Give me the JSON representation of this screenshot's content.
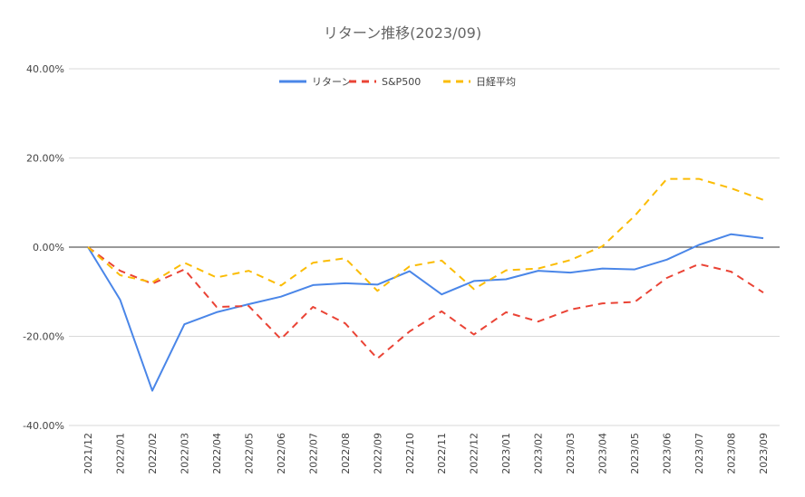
{
  "chart_data": {
    "type": "line",
    "title": "リターン推移(2023/09)",
    "xlabel": "",
    "ylabel": "",
    "ylim": [
      -40,
      40
    ],
    "yticks": [
      40,
      20,
      0,
      -20,
      -40
    ],
    "ytick_labels": [
      "40.00%",
      "20.00%",
      "0.00%",
      "-20.00%",
      "-40.00%"
    ],
    "grid": true,
    "legend_position": "top-center",
    "categories": [
      "2021/12",
      "2022/01",
      "2022/02",
      "2022/03",
      "2022/04",
      "2022/05",
      "2022/06",
      "2022/07",
      "2022/08",
      "2022/09",
      "2022/10",
      "2022/11",
      "2022/12",
      "2023/01",
      "2023/02",
      "2023/03",
      "2023/04",
      "2023/05",
      "2023/06",
      "2023/07",
      "2023/08",
      "2023/09"
    ],
    "series": [
      {
        "name": "リターン",
        "color": "#4a86e8",
        "style": "solid",
        "values": [
          0,
          -11.8,
          -32.2,
          -17.3,
          -14.6,
          -12.8,
          -11.1,
          -8.5,
          -8.1,
          -8.4,
          -5.4,
          -10.6,
          -7.6,
          -7.2,
          -5.3,
          -5.7,
          -4.8,
          -5.0,
          -2.8,
          0.5,
          2.9,
          2.0
        ]
      },
      {
        "name": "S&P500",
        "color": "#ea4335",
        "style": "dashed",
        "values": [
          0,
          -5.3,
          -8.2,
          -5.0,
          -13.4,
          -13.2,
          -20.6,
          -13.4,
          -17.1,
          -25.0,
          -18.9,
          -14.4,
          -19.6,
          -14.6,
          -16.7,
          -14.0,
          -12.6,
          -12.3,
          -6.9,
          -3.8,
          -5.5,
          -10.2
        ]
      },
      {
        "name": "日経平均",
        "color": "#fbbc04",
        "style": "dashed",
        "values": [
          0,
          -6.3,
          -7.9,
          -3.5,
          -6.8,
          -5.3,
          -8.6,
          -3.5,
          -2.5,
          -9.8,
          -4.3,
          -3.0,
          -9.4,
          -5.2,
          -4.8,
          -2.9,
          0.2,
          7.0,
          15.3,
          15.3,
          13.2,
          10.6
        ]
      }
    ]
  }
}
